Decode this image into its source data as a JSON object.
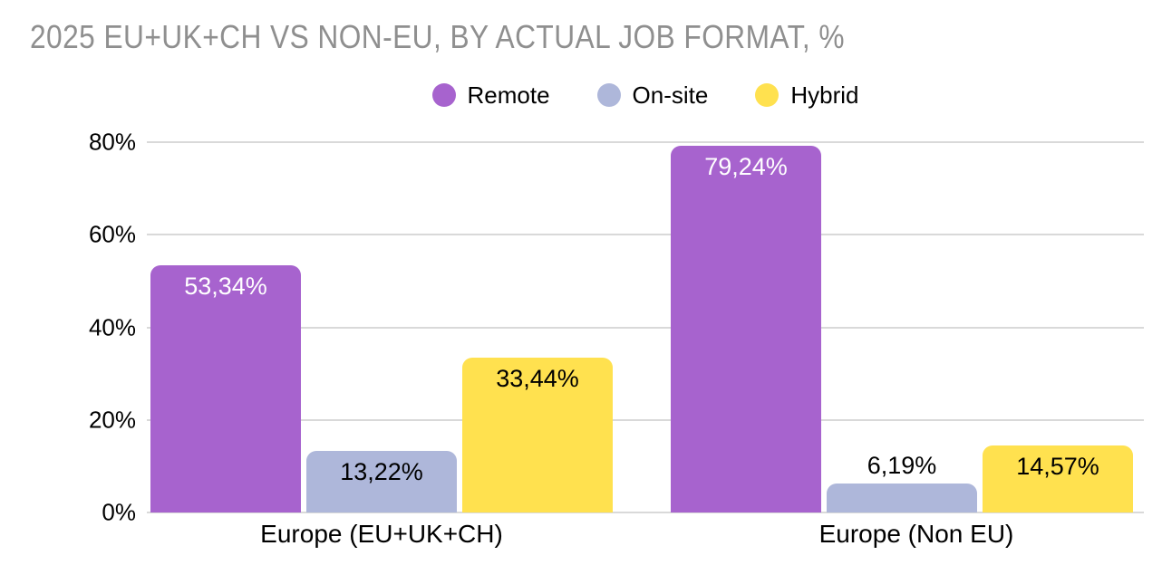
{
  "chart_data": {
    "type": "bar",
    "title": "2025 EU+UK+CH VS NON-EU, BY ACTUAL JOB FORMAT, %",
    "categories": [
      "Europe (EU+UK+CH)",
      "Europe (Non EU)"
    ],
    "series": [
      {
        "name": "Remote",
        "color": "#a763ce",
        "label_color": "#ffffff",
        "values": [
          53.34,
          79.24
        ],
        "labels": [
          "53,34%",
          "79,24%"
        ]
      },
      {
        "name": "On-site",
        "color": "#aeb7da",
        "label_color": "#000000",
        "values": [
          13.22,
          6.19
        ],
        "labels": [
          "13,22%",
          "6,19%"
        ]
      },
      {
        "name": "Hybrid",
        "color": "#ffe14f",
        "label_color": "#000000",
        "values": [
          33.44,
          14.57
        ],
        "labels": [
          "33,44%",
          "14,57%"
        ]
      }
    ],
    "xlabel": "",
    "ylabel": "",
    "ylim": [
      0,
      80
    ],
    "yticks": [
      {
        "value": 0,
        "label": "0%"
      },
      {
        "value": 20,
        "label": "20%"
      },
      {
        "value": 40,
        "label": "40%"
      },
      {
        "value": 60,
        "label": "60%"
      },
      {
        "value": 80,
        "label": "80%"
      }
    ],
    "grid": true,
    "legend_position": "top-center",
    "decimal_separator": ","
  },
  "colors": {
    "background": "#ffffff",
    "title_text": "#8f8f8f",
    "axis_text": "#000000",
    "gridline": "#d9d9d9"
  }
}
